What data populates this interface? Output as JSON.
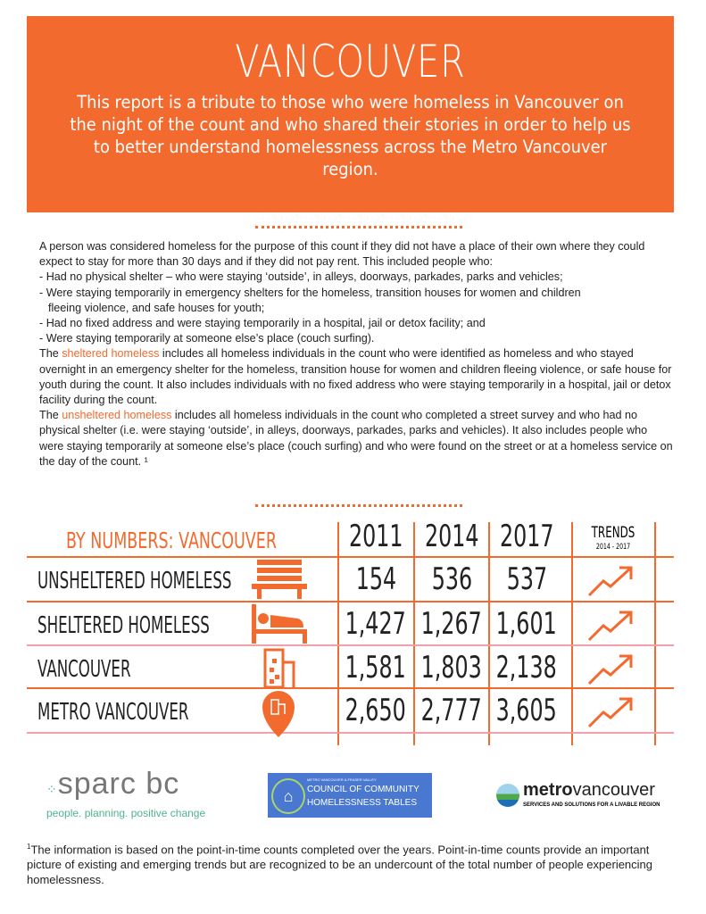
{
  "header": {
    "title": "VANCOUVER",
    "subtitle": "This report is a tribute to those who were homeless in Vancouver on the night of the count and who shared their stories in order to help us to better understand homelessness across the Metro Vancouver region."
  },
  "definition": {
    "intro": "A person was considered homeless for the purpose of this count if they did not have a place of their own where they could expect to stay for more than 30 days and if they did not pay rent. This included people who:",
    "bullets": [
      "- Had no physical shelter – who were staying ‘outside’, in alleys, doorways, parkades, parks and vehicles;",
      "- Were staying temporarily in emergency shelters for the homeless, transition houses for women and children",
      "fleeing violence, and safe houses for youth;",
      "- Had no fixed address and were staying temporarily in a hospital, jail or detox facility; and",
      "- Were staying temporarily at someone else’s place (couch surfing)."
    ],
    "sheltered_pre": "The ",
    "sheltered_term": "sheltered homeless",
    "sheltered_text": " includes all homeless individuals in the count who were identified as homeless and who stayed overnight in an emergency shelter for the homeless, transition house for women and children fleeing violence, or safe house for youth during the count. It also includes individuals with no fixed address who were staying temporarily in a hospital, jail or detox facility during the count.",
    "unsheltered_pre": "The ",
    "unsheltered_term": "unsheltered homeless",
    "unsheltered_text": " includes all homeless individuals in the count who completed a street survey and who had no physical shelter (i.e. were staying ‘outside’, in alleys, doorways, parkades, parks and vehicles). It also includes people who were staying temporarily at someone else’s place (couch surfing) and who were found on the street or at a homeless service on the day of the count. ¹"
  },
  "table": {
    "title": "BY NUMBERS: VANCOUVER",
    "years": [
      "2011",
      "2014",
      "2017"
    ],
    "trends_label": "TRENDS",
    "trends_range": "2014 - 2017",
    "rows": [
      {
        "label": "UNSHELTERED HOMELESS",
        "icon": "bench-icon",
        "values": [
          "154",
          "536",
          "537"
        ],
        "trend": "up"
      },
      {
        "label": "SHELTERED HOMELESS",
        "icon": "bed-icon",
        "values": [
          "1,427",
          "1,267",
          "1,601"
        ],
        "trend": "up"
      },
      {
        "label": "VANCOUVER",
        "icon": "building-icon",
        "values": [
          "1,581",
          "1,803",
          "2,138"
        ],
        "trend": "up"
      },
      {
        "label": "METRO VANCOUVER",
        "icon": "map-pin-building-icon",
        "values": [
          "2,650",
          "2,777",
          "3,605"
        ],
        "trend": "up"
      }
    ]
  },
  "logos": {
    "sparc": {
      "name": "sparc bc",
      "tagline": "people. planning. positive change"
    },
    "council": {
      "small": "METRO VANCOUVER & FRASER VALLEY",
      "line1": "COUNCIL OF COMMUNITY",
      "line2": "HOMELESSNESS TABLES"
    },
    "metro": {
      "bold": "metro",
      "light": "vancouver",
      "tagline": "SERVICES AND SOLUTIONS FOR A LIVABLE REGION"
    }
  },
  "footnote": {
    "mark": "1",
    "text": "The information is based on the point-in-time counts completed over the years.  Point-in-time counts provide an important picture of existing and emerging trends but are recognized to be an undercount of the total number of people experiencing homelessness."
  },
  "colors": {
    "accent": "#f26a2e",
    "sparc_green": "#4fb58a",
    "council_blue": "#4a78d0"
  }
}
